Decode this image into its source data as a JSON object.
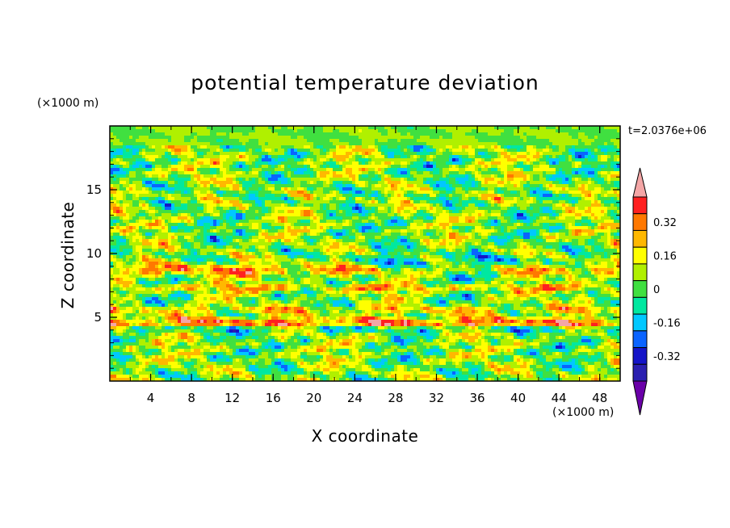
{
  "chart_data": {
    "type": "heatmap",
    "title": "potential temperature deviation",
    "xlabel": "X coordinate",
    "ylabel": "Z coordinate",
    "x_unit": "(×1000 m)",
    "y_unit": "(×1000 m)",
    "timestamp": "t=2.0376e+06",
    "xlim": [
      0,
      50
    ],
    "ylim": [
      0,
      20
    ],
    "x_ticks": [
      "4",
      "8",
      "12",
      "16",
      "20",
      "24",
      "28",
      "32",
      "36",
      "40",
      "44",
      "48"
    ],
    "y_ticks": [
      "5",
      "10",
      "15"
    ],
    "colorbar": {
      "labels": [
        "0.32",
        "0.16",
        "0",
        "-0.16",
        "-0.32"
      ],
      "levels": [
        -0.48,
        -0.4,
        -0.32,
        -0.24,
        -0.16,
        -0.08,
        0,
        0.08,
        0.16,
        0.24,
        0.32,
        0.4
      ],
      "colors": [
        "#6a00a8",
        "#2a1fb0",
        "#1414c8",
        "#0a64ff",
        "#00c8ff",
        "#00e8a0",
        "#40e040",
        "#b0f000",
        "#ffff00",
        "#ffb800",
        "#ff7800",
        "#ff2020",
        "#f4a6a6"
      ],
      "extend": "both"
    }
  }
}
